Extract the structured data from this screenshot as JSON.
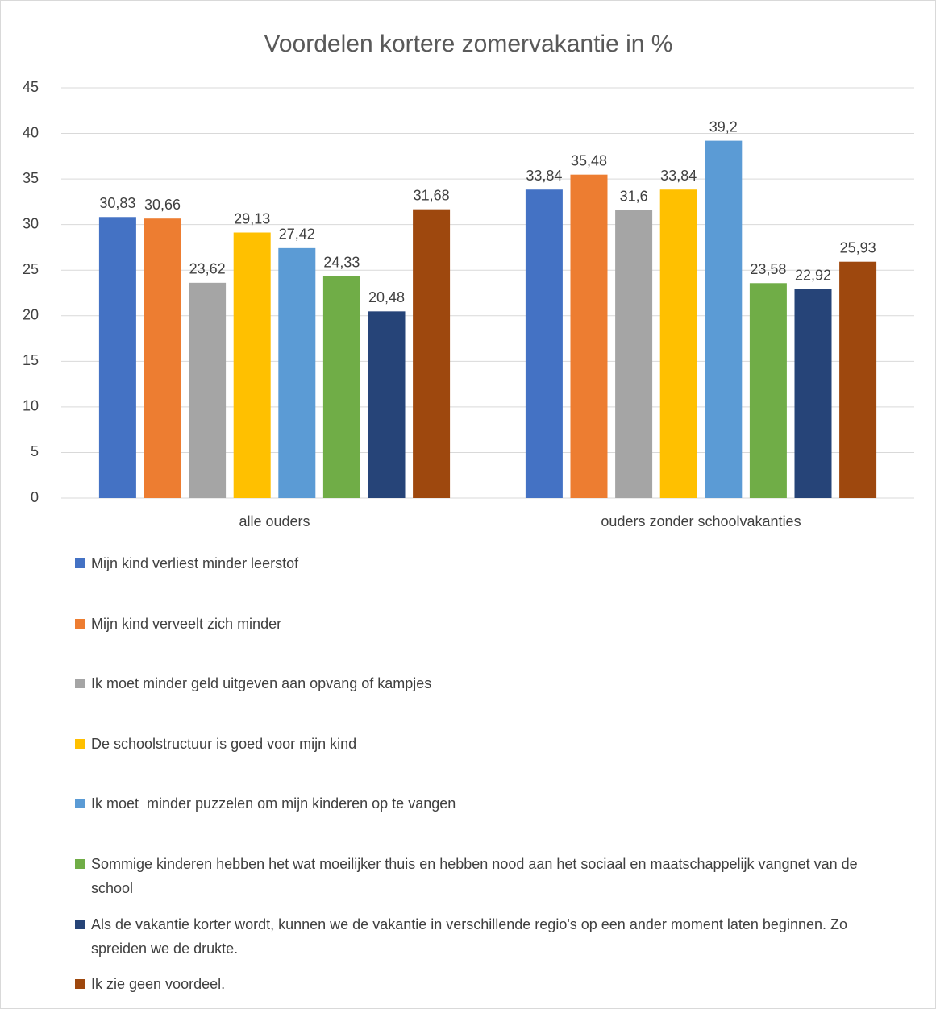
{
  "chart_data": {
    "type": "bar",
    "title": "Voordelen kortere zomervakantie in %",
    "categories": [
      "alle ouders",
      "ouders zonder schoolvakanties"
    ],
    "ylim": [
      0,
      45
    ],
    "yticks": [
      0,
      5,
      10,
      15,
      20,
      25,
      30,
      35,
      40,
      45
    ],
    "grid": true,
    "legend": "bottom",
    "series": [
      {
        "name": "Mijn kind verliest minder leerstof",
        "color": "#4472c4",
        "values": [
          30.83,
          33.84
        ],
        "value_labels": [
          "30,83",
          "33,84"
        ]
      },
      {
        "name": "Mijn kind verveelt zich minder",
        "color": "#ed7d31",
        "values": [
          30.66,
          35.48
        ],
        "value_labels": [
          "30,66",
          "35,48"
        ]
      },
      {
        "name": "Ik moet minder geld uitgeven aan opvang of kampjes",
        "color": "#a5a5a5",
        "values": [
          23.62,
          31.6
        ],
        "value_labels": [
          "23,62",
          "31,6"
        ]
      },
      {
        "name": "De schoolstructuur is goed voor mijn kind",
        "color": "#ffc000",
        "values": [
          29.13,
          33.84
        ],
        "value_labels": [
          "29,13",
          "33,84"
        ]
      },
      {
        "name": "Ik moet  minder puzzelen om mijn kinderen op te vangen",
        "color": "#5b9bd5",
        "values": [
          27.42,
          39.2
        ],
        "value_labels": [
          "27,42",
          "39,2"
        ]
      },
      {
        "name": "Sommige kinderen hebben het wat moeilijker thuis en hebben nood aan het sociaal en maatschappelijk vangnet van de school",
        "color": "#70ad47",
        "values": [
          24.33,
          23.58
        ],
        "value_labels": [
          "24,33",
          "23,58"
        ]
      },
      {
        "name": "Als de vakantie korter wordt, kunnen we de vakantie in verschillende regio's op een ander moment laten beginnen. Zo spreiden we de drukte.",
        "color": "#264478",
        "values": [
          20.48,
          22.92
        ],
        "value_labels": [
          "20,48",
          "22,92"
        ]
      },
      {
        "name": "Ik zie geen voordeel.",
        "color": "#9e480e",
        "values": [
          31.68,
          25.93
        ],
        "value_labels": [
          "31,68",
          "25,93"
        ]
      }
    ]
  }
}
